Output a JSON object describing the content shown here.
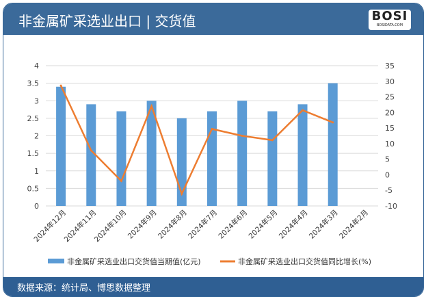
{
  "header": {
    "title": "非金属矿采选业出口 | 交货值",
    "logo_text": "BOSI",
    "logo_sub": "BOSIDATA.COM"
  },
  "footer": {
    "source": "数据来源：统计局、博思数据整理"
  },
  "colors": {
    "bar": "#5b9bd5",
    "line": "#ed7d31",
    "header": "#3b6a9a",
    "grid": "#d9d9d9"
  },
  "chart_data": {
    "type": "bar+line",
    "categories": [
      "2024年12月",
      "2024年11月",
      "2024年10月",
      "2024年9月",
      "2024年8月",
      "2024年7月",
      "2024年6月",
      "2024年5月",
      "2024年4月",
      "2024年3月",
      "2024年2月"
    ],
    "series": [
      {
        "name": "非金属矿采选业出口交货值当期值(亿元)",
        "type": "bar",
        "axis": "left",
        "values": [
          3.4,
          2.9,
          2.7,
          3.0,
          2.5,
          2.7,
          3.0,
          2.7,
          2.9,
          3.5,
          null
        ]
      },
      {
        "name": "非金属矿采选业出口交货值同比增长(%)",
        "type": "line",
        "axis": "right",
        "values": [
          28.6,
          7.8,
          -2,
          22,
          -6.1,
          14.7,
          12.5,
          11.1,
          20.7,
          16.8,
          null
        ]
      }
    ],
    "left_axis": {
      "ylim": [
        0,
        4
      ],
      "ticks": [
        "0",
        "0.5",
        "1",
        "1.5",
        "2",
        "2.5",
        "3",
        "3.5",
        "4"
      ]
    },
    "right_axis": {
      "ylim": [
        -10,
        35
      ],
      "ticks": [
        "-10",
        "-5",
        "0",
        "5",
        "10",
        "15",
        "20",
        "25",
        "30",
        "35"
      ]
    },
    "grid": true,
    "legend": "bottom"
  }
}
